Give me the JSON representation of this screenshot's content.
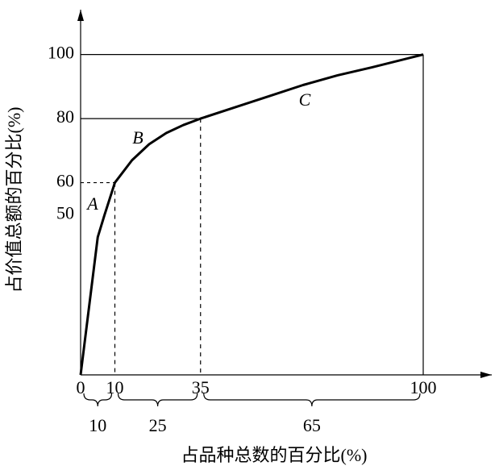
{
  "chart_data": {
    "type": "line",
    "x_label": "占品种总数的百分比(%)",
    "y_label": "占价值总额的百分比(%)",
    "x": [
      0,
      5,
      7,
      10,
      15,
      20,
      25,
      30,
      35,
      45,
      55,
      65,
      75,
      85,
      100
    ],
    "series": [
      {
        "color": "#000000",
        "values": [
          0,
          43,
          50,
          60,
          67,
          72,
          75.5,
          78,
          80,
          83.5,
          87,
          90.5,
          93.5,
          96,
          100
        ]
      }
    ],
    "xlim": [
      0,
      120
    ],
    "ylim": [
      0,
      114
    ],
    "xticks": [
      0,
      10,
      35,
      100
    ],
    "yticks": [
      50,
      60,
      80,
      100
    ],
    "zones": [
      "A",
      "B",
      "C"
    ],
    "segments": [
      10,
      25,
      65
    ]
  }
}
